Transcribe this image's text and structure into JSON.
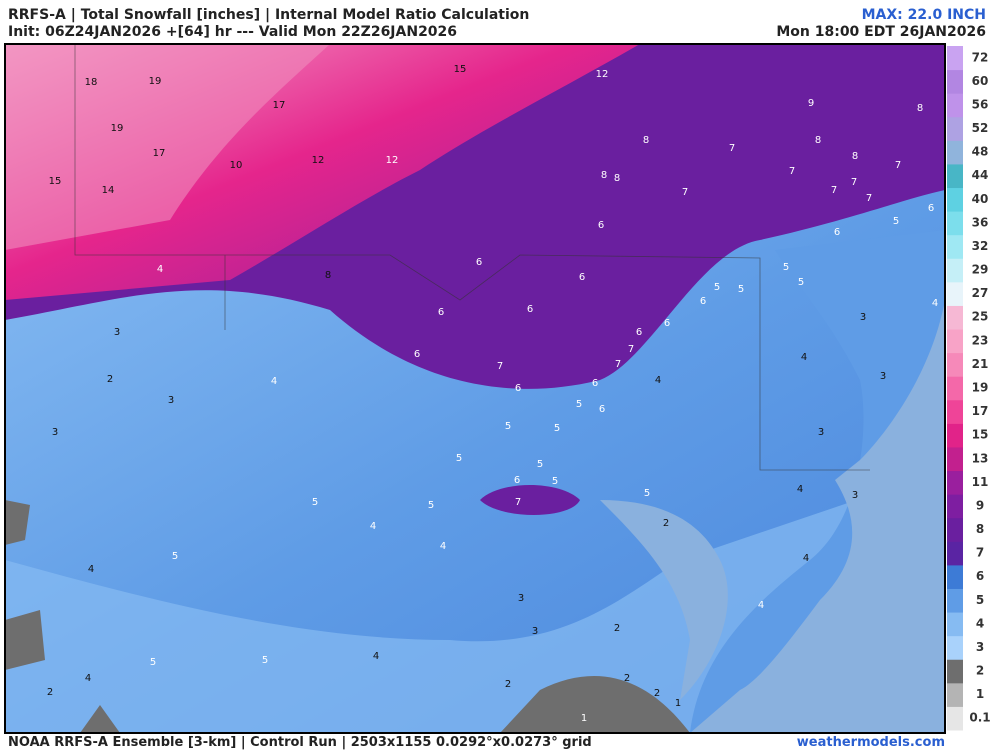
{
  "header": {
    "title": "RRFS-A | Total Snowfall [inches] | Internal Model Ratio Calculation",
    "init": "Init: 06Z24JAN2026 +[64] hr --- Valid Mon 22Z26JAN2026",
    "max": "MAX: 22.0 INCH",
    "valid": "Mon 18:00 EDT 26JAN2026"
  },
  "footer": {
    "source": "NOAA RRFS-A Ensemble [3-km] | Control Run | 2503x1155 0.0292°x0.0273° grid",
    "site": "weathermodels.com"
  },
  "colorbar": {
    "levels": [
      0.1,
      1,
      2,
      3,
      4,
      5,
      6,
      7,
      8,
      9,
      11,
      13,
      15,
      17,
      19,
      21,
      23,
      25,
      27,
      29,
      32,
      36,
      40,
      44,
      48,
      52,
      56,
      60,
      72
    ],
    "colors": [
      "#e6e6e6",
      "#b4b4b4",
      "#6e6e6e",
      "#a9d2fb",
      "#86bbf2",
      "#5f9ce6",
      "#3d7bd6",
      "#5a24a3",
      "#6a1f9f",
      "#7e1ea1",
      "#9a1f9e",
      "#c2208e",
      "#e12389",
      "#ef4498",
      "#f468a9",
      "#f689b9",
      "#f8a3c7",
      "#f6b8d4",
      "#e8f4fa",
      "#c5eff7",
      "#9fe8f3",
      "#7cdeec",
      "#5ed1e2",
      "#48b6c6",
      "#90b4dc",
      "#aea2e3",
      "#bf92ea",
      "#b286e2",
      "#c9a3f1"
    ]
  },
  "map": {
    "labels": [
      18,
      19,
      19,
      17,
      17,
      15,
      14,
      10,
      12,
      12,
      15,
      12,
      9,
      8,
      8,
      7,
      8,
      8,
      7,
      7,
      7,
      7,
      7,
      8,
      8,
      7,
      6,
      5,
      6,
      6,
      4,
      8,
      6,
      6,
      5,
      5,
      4,
      5,
      6,
      5,
      6,
      6,
      3,
      3,
      6,
      6,
      6,
      7,
      7,
      7,
      4,
      3,
      2,
      4,
      6,
      6,
      4,
      3,
      5,
      6,
      3,
      5,
      5,
      3,
      5,
      5,
      6,
      5,
      5,
      4,
      3,
      5,
      5,
      7,
      4,
      2,
      4,
      5,
      4,
      4,
      3,
      4,
      3,
      2,
      5,
      5,
      4,
      4,
      2,
      2,
      2,
      2,
      1,
      1
    ]
  }
}
